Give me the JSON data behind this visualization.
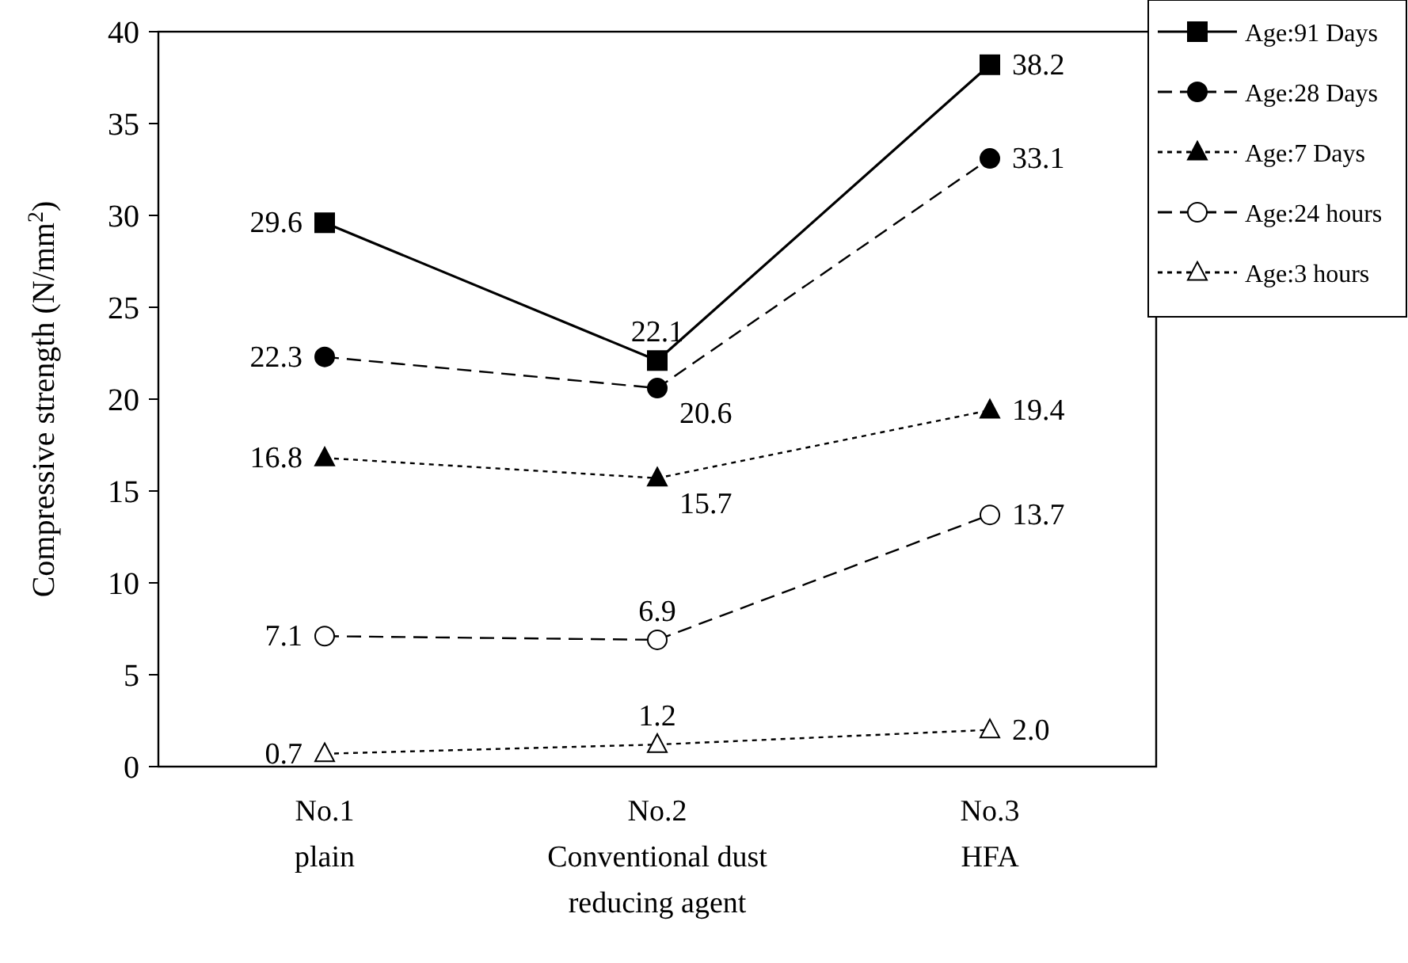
{
  "chart_data": {
    "type": "line",
    "ylabel": "Compressive strength (N/mm$^{2}$)",
    "categories": [
      "No.1\nplain",
      "No.2\nConventional dust\nreducing agent",
      "No.3\nHFA"
    ],
    "ylim": [
      0,
      40
    ],
    "yticks": [
      0,
      5,
      10,
      15,
      20,
      25,
      30,
      35,
      40
    ],
    "grid": false,
    "legend": "top right",
    "series": [
      {
        "name": "Age:91 Days",
        "color": "#000000",
        "values": [
          29.6,
          22.1,
          38.2
        ],
        "value_labels": [
          "29.6",
          "22.1",
          "38.2"
        ],
        "marker": "square",
        "line_style": "solid"
      },
      {
        "name": "Age:28 Days",
        "color": "#000000",
        "values": [
          22.3,
          20.6,
          33.1
        ],
        "value_labels": [
          "22.3",
          "20.6",
          "33.1"
        ],
        "marker": "circle",
        "line_style": "dashed"
      },
      {
        "name": "Age:7 Days",
        "color": "#000000",
        "values": [
          16.8,
          15.7,
          19.4
        ],
        "value_labels": [
          "16.8",
          "15.7",
          "19.4"
        ],
        "marker": "triangle",
        "line_style": "dotted"
      },
      {
        "name": "Age:24 hours",
        "color": "#000000",
        "colors": [
          "#ffffff",
          "#ffffff",
          "#ffffff"
        ],
        "values": [
          7.1,
          6.9,
          13.7
        ],
        "value_labels": [
          "7.1",
          "6.9",
          "13.7"
        ],
        "marker": "circle",
        "line_style": "dashed"
      },
      {
        "name": "Age:3 hours",
        "color": "#000000",
        "colors": [
          "#ffffff",
          "#ffffff",
          "#ffffff"
        ],
        "values": [
          0.7,
          1.2,
          2.0
        ],
        "value_labels": [
          "0.7",
          "1.2",
          "2.0"
        ],
        "marker": "triangle",
        "line_style": "dotted"
      }
    ]
  }
}
